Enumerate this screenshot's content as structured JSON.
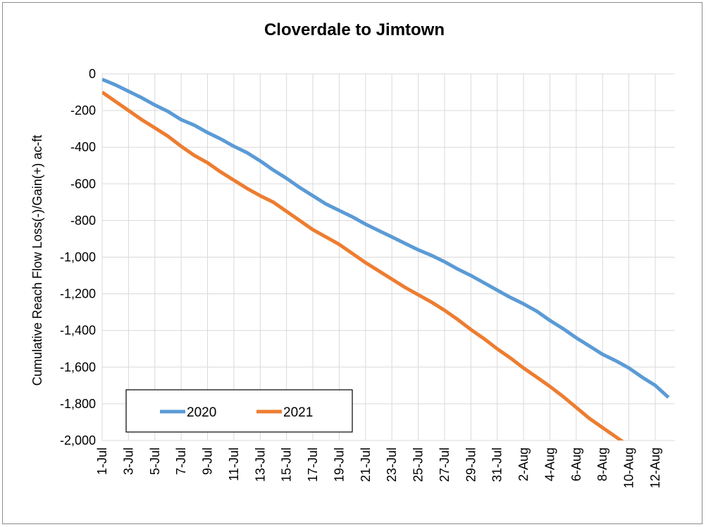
{
  "chart_data": {
    "type": "line",
    "title": "Cloverdale to Jimtown",
    "xlabel": "",
    "ylabel": "Cumulative Reach Flow Loss(-)/Gain(+)  ac-ft",
    "ylim": [
      -2000,
      0
    ],
    "yticks": [
      0,
      -200,
      -400,
      -600,
      -800,
      -1000,
      -1200,
      -1400,
      -1600,
      -1800,
      -2000
    ],
    "ytick_labels": [
      "0",
      "-200",
      "-400",
      "-600",
      "-800",
      "-1,000",
      "-1,200",
      "-1,400",
      "-1,600",
      "-1,800",
      "-2,000"
    ],
    "x_tick_labels": [
      "1-Jul",
      "3-Jul",
      "5-Jul",
      "7-Jul",
      "9-Jul",
      "11-Jul",
      "13-Jul",
      "15-Jul",
      "17-Jul",
      "19-Jul",
      "21-Jul",
      "23-Jul",
      "25-Jul",
      "27-Jul",
      "29-Jul",
      "31-Jul",
      "2-Aug",
      "4-Aug",
      "6-Aug",
      "8-Aug",
      "10-Aug",
      "12-Aug"
    ],
    "grid": true,
    "legend_position": "bottom-left",
    "series": [
      {
        "name": "2020",
        "color": "#5b9bd5",
        "x": [
          "1-Jul",
          "2-Jul",
          "3-Jul",
          "4-Jul",
          "5-Jul",
          "6-Jul",
          "7-Jul",
          "8-Jul",
          "9-Jul",
          "10-Jul",
          "11-Jul",
          "12-Jul",
          "13-Jul",
          "14-Jul",
          "15-Jul",
          "16-Jul",
          "17-Jul",
          "18-Jul",
          "19-Jul",
          "20-Jul",
          "21-Jul",
          "22-Jul",
          "23-Jul",
          "24-Jul",
          "25-Jul",
          "26-Jul",
          "27-Jul",
          "28-Jul",
          "29-Jul",
          "30-Jul",
          "31-Jul",
          "1-Aug",
          "2-Aug",
          "3-Aug",
          "4-Aug",
          "5-Aug",
          "6-Aug",
          "7-Aug",
          "8-Aug",
          "9-Aug",
          "10-Aug",
          "11-Aug",
          "12-Aug",
          "13-Aug"
        ],
        "values": [
          -30,
          -60,
          -95,
          -130,
          -170,
          -205,
          -250,
          -280,
          -320,
          -355,
          -395,
          -430,
          -475,
          -525,
          -570,
          -620,
          -665,
          -710,
          -745,
          -780,
          -820,
          -855,
          -890,
          -925,
          -960,
          -990,
          -1025,
          -1065,
          -1100,
          -1140,
          -1180,
          -1220,
          -1255,
          -1295,
          -1345,
          -1390,
          -1440,
          -1485,
          -1530,
          -1565,
          -1605,
          -1655,
          -1700,
          -1765
        ]
      },
      {
        "name": "2021",
        "color": "#ed7d31",
        "x": [
          "1-Jul",
          "2-Jul",
          "3-Jul",
          "4-Jul",
          "5-Jul",
          "6-Jul",
          "7-Jul",
          "8-Jul",
          "9-Jul",
          "10-Jul",
          "11-Jul",
          "12-Jul",
          "13-Jul",
          "14-Jul",
          "15-Jul",
          "16-Jul",
          "17-Jul",
          "18-Jul",
          "19-Jul",
          "20-Jul",
          "21-Jul",
          "22-Jul",
          "23-Jul",
          "24-Jul",
          "25-Jul",
          "26-Jul",
          "27-Jul",
          "28-Jul",
          "29-Jul",
          "30-Jul",
          "31-Jul",
          "1-Aug",
          "2-Aug",
          "3-Aug",
          "4-Aug",
          "5-Aug",
          "6-Aug",
          "7-Aug",
          "8-Aug",
          "9-Aug",
          "10-Aug"
        ],
        "values": [
          -100,
          -150,
          -200,
          -250,
          -295,
          -340,
          -395,
          -445,
          -485,
          -535,
          -580,
          -625,
          -665,
          -700,
          -750,
          -800,
          -850,
          -890,
          -930,
          -980,
          -1030,
          -1075,
          -1120,
          -1165,
          -1205,
          -1245,
          -1290,
          -1340,
          -1395,
          -1445,
          -1500,
          -1550,
          -1605,
          -1655,
          -1705,
          -1760,
          -1820,
          -1880,
          -1930,
          -1980,
          -2030
        ]
      }
    ]
  }
}
